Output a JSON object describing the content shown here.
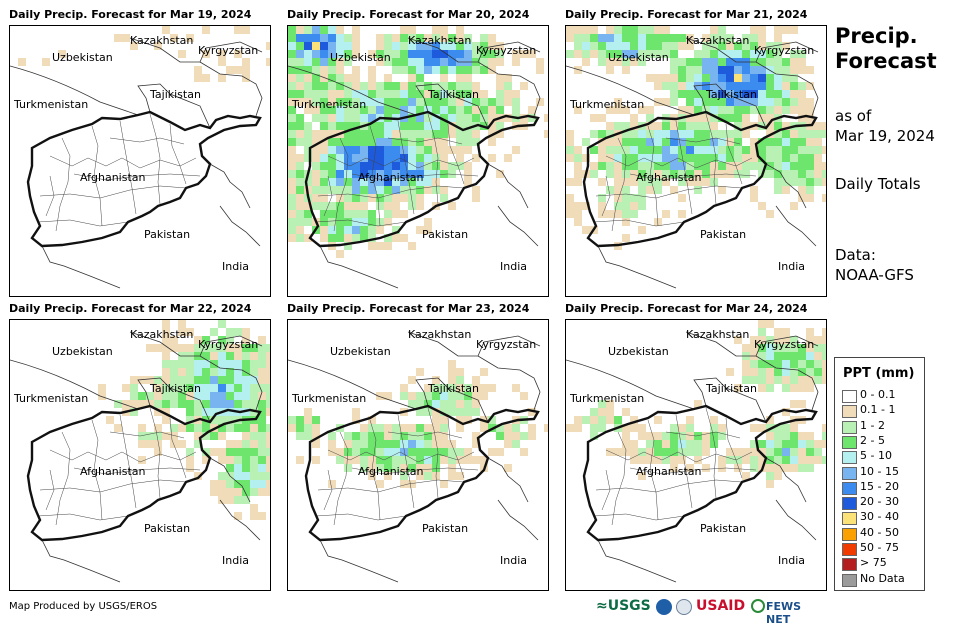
{
  "panels": [
    {
      "title": "Daily Precip. Forecast for Mar 19, 2024",
      "precip": "none"
    },
    {
      "title": "Daily Precip. Forecast for Mar 20, 2024",
      "precip": "heavy-central"
    },
    {
      "title": "Daily Precip. Forecast for Mar 21, 2024",
      "precip": "heavy-northeast"
    },
    {
      "title": "Daily Precip. Forecast for Mar 22, 2024",
      "precip": "east"
    },
    {
      "title": "Daily Precip. Forecast for Mar 23, 2024",
      "precip": "light-central"
    },
    {
      "title": "Daily Precip. Forecast for Mar 24, 2024",
      "precip": "light-northeast"
    }
  ],
  "map_labels": {
    "kazakhstan": "Kazakhstan",
    "kyrgyzstan": "Kyrgyzstan",
    "uzbekistan": "Uzbekistan",
    "tajikistan": "Tajikistan",
    "turkmenistan": "Turkmenistan",
    "afghanistan": "Afghanistan",
    "pakistan": "Pakistan",
    "india": "India"
  },
  "sidebar": {
    "title_line1": "Precip.",
    "title_line2": "Forecast",
    "asof_line1": "as of",
    "asof_line2": "Mar 19, 2024",
    "period": "Daily Totals",
    "data_line1": "Data:",
    "data_line2": "NOAA-GFS"
  },
  "legend": {
    "title": "PPT (mm)",
    "items": [
      {
        "label": "0 - 0.1",
        "color": "#ffffff"
      },
      {
        "label": "0.1 - 1",
        "color": "#f0dcb9"
      },
      {
        "label": "1 - 2",
        "color": "#b9f0b4"
      },
      {
        "label": "2 - 5",
        "color": "#6ee66e"
      },
      {
        "label": "5 - 10",
        "color": "#b4f0f0"
      },
      {
        "label": "10 - 15",
        "color": "#78b4f0"
      },
      {
        "label": "15 - 20",
        "color": "#3c8cf0"
      },
      {
        "label": "20 - 30",
        "color": "#1e5adc"
      },
      {
        "label": "30 - 40",
        "color": "#fae178"
      },
      {
        "label": "40 - 50",
        "color": "#faa000"
      },
      {
        "label": "50 - 75",
        "color": "#f03c00"
      },
      {
        "label": "> 75",
        "color": "#b41e1e"
      },
      {
        "label": "No Data",
        "color": "#9b9b9b"
      }
    ]
  },
  "footer": {
    "credit": "Map Produced by USGS/EROS",
    "logo_usgs": "≈USGS",
    "logo_usaid": "USAID",
    "logo_fews": "FEWS NET"
  }
}
